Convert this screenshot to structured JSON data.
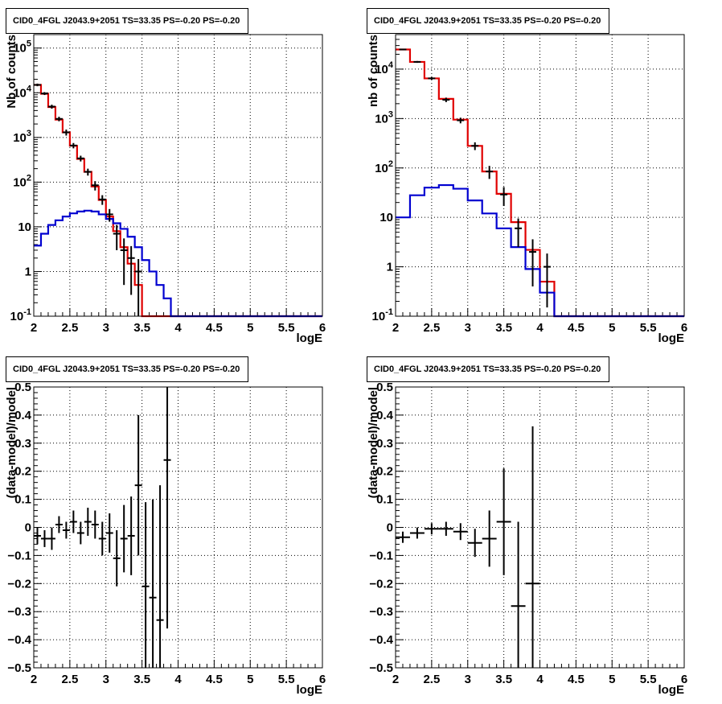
{
  "chart_data": [
    {
      "type": "line",
      "title": "CID0_4FGL J2043.9+2051 TS=33.35 PS=-0.20 PS=-0.20",
      "xlabel": "logE",
      "ylabel": "Nb of counts",
      "xlim": [
        2,
        6
      ],
      "ylim": [
        0.1,
        200000
      ],
      "yscale": "log",
      "grid": true,
      "x_ticks": [
        "2",
        "2.5",
        "3",
        "3.5",
        "4",
        "4.5",
        "5",
        "5.5",
        "6"
      ],
      "y_ticks": [
        "10⁻¹",
        "1",
        "10",
        "10²",
        "10³",
        "10⁴",
        "10⁵"
      ],
      "bin_edges": [
        2.0,
        2.1,
        2.2,
        2.3,
        2.4,
        2.5,
        2.6,
        2.7,
        2.8,
        2.9,
        3.0,
        3.1,
        3.2,
        3.3,
        3.4,
        3.5,
        3.6,
        3.7,
        3.8,
        3.9,
        4.0,
        4.1,
        4.2,
        4.3,
        4.4,
        4.5,
        4.6,
        4.7,
        4.8,
        4.9,
        5.0,
        5.1,
        5.2,
        5.3,
        5.4,
        5.5,
        5.6,
        5.7,
        5.8,
        5.9,
        6.0
      ],
      "series": [
        {
          "color": "#e00000",
          "style": "step",
          "values": [
            15000,
            9500,
            4800,
            2500,
            1300,
            650,
            330,
            170,
            80,
            40,
            17,
            8,
            3.5,
            1.5,
            0.5,
            0.1,
            0.1,
            0.1,
            0.1,
            0.1,
            0.1,
            0.1,
            0.1,
            0.1,
            0.1,
            0.1,
            0.1,
            0.1,
            0.1,
            0.1,
            0.1,
            0.1,
            0.1,
            0.1,
            0.1,
            0.1,
            0.1,
            0.1,
            0.1,
            0.1
          ]
        },
        {
          "color": "#0000d0",
          "style": "step",
          "values": [
            3.8,
            7,
            11,
            14,
            17,
            20,
            22,
            23,
            22,
            19,
            15,
            12,
            9,
            6,
            3.5,
            1.8,
            1,
            0.5,
            0.25,
            0.1,
            0.1,
            0.1,
            0.1,
            0.1,
            0.1,
            0.1,
            0.1,
            0.1,
            0.1,
            0.1,
            0.1,
            0.1,
            0.1,
            0.1,
            0.1,
            0.1,
            0.1,
            0.1,
            0.1,
            0.1
          ]
        },
        {
          "color": "#000000",
          "style": "errorbar",
          "points": [
            [
              2.05,
              15000,
              1000
            ],
            [
              2.15,
              9600,
              700
            ],
            [
              2.25,
              4900,
              500
            ],
            [
              2.35,
              2600,
              300
            ],
            [
              2.45,
              1300,
              200
            ],
            [
              2.55,
              660,
              90
            ],
            [
              2.65,
              340,
              50
            ],
            [
              2.75,
              170,
              30
            ],
            [
              2.85,
              85,
              20
            ],
            [
              2.95,
              41,
              10
            ],
            [
              3.05,
              19,
              6
            ],
            [
              3.15,
              7,
              4
            ],
            [
              3.25,
              3,
              2.5
            ],
            [
              3.35,
              2,
              1.7
            ],
            [
              3.45,
              1,
              0.9
            ]
          ]
        }
      ]
    },
    {
      "type": "line",
      "title": "CID0_4FGL J2043.9+2051 TS=33.35 PS=-0.20 PS=-0.20",
      "xlabel": "logE",
      "ylabel": "nb of counts",
      "xlim": [
        2,
        6
      ],
      "ylim": [
        0.1,
        50000
      ],
      "yscale": "log",
      "grid": true,
      "x_ticks": [
        "2",
        "2.5",
        "3",
        "3.5",
        "4",
        "4.5",
        "5",
        "5.5",
        "6"
      ],
      "y_ticks": [
        "10⁻¹",
        "1",
        "10",
        "10²",
        "10³",
        "10⁴"
      ],
      "bin_edges": [
        2.0,
        2.2,
        2.4,
        2.6,
        2.8,
        3.0,
        3.2,
        3.4,
        3.6,
        3.8,
        4.0,
        4.2,
        4.4,
        4.6,
        4.8,
        5.0,
        5.2,
        5.4,
        5.6,
        5.8,
        6.0
      ],
      "series": [
        {
          "color": "#e00000",
          "style": "step",
          "values": [
            25000,
            14000,
            6500,
            2500,
            950,
            280,
            85,
            30,
            8,
            2.2,
            0.5,
            0.1,
            0.1,
            0.1,
            0.1,
            0.1,
            0.1,
            0.1,
            0.1,
            0.1
          ]
        },
        {
          "color": "#0000d0",
          "style": "step",
          "values": [
            10,
            28,
            40,
            45,
            38,
            22,
            12,
            6,
            2.5,
            0.9,
            0.3,
            0.1,
            0.1,
            0.1,
            0.1,
            0.1,
            0.1,
            0.1,
            0.1,
            0.1
          ]
        },
        {
          "color": "#000000",
          "style": "errorbar",
          "points": [
            [
              2.1,
              25000,
              800
            ],
            [
              2.3,
              14000,
              600
            ],
            [
              2.5,
              6500,
              400
            ],
            [
              2.7,
              2400,
              250
            ],
            [
              2.9,
              920,
              120
            ],
            [
              3.1,
              280,
              50
            ],
            [
              3.3,
              85,
              25
            ],
            [
              3.5,
              29,
              12
            ],
            [
              3.7,
              6,
              3.5
            ],
            [
              3.9,
              2,
              1.6
            ],
            [
              4.1,
              1,
              0.85
            ]
          ]
        }
      ]
    },
    {
      "type": "scatter",
      "title": "CID0_4FGL J2043.9+2051 TS=33.35 PS=-0.20 PS=-0.20",
      "xlabel": "logE",
      "ylabel": "(data-model)/model",
      "xlim": [
        2,
        6
      ],
      "ylim": [
        -0.5,
        0.5
      ],
      "grid": true,
      "x_ticks": [
        "2",
        "2.5",
        "3",
        "3.5",
        "4",
        "4.5",
        "5",
        "5.5",
        "6"
      ],
      "y_ticks": [
        "−0.5",
        "−0.4",
        "−0.3",
        "−0.2",
        "−0.1",
        "0",
        "0.1",
        "0.2",
        "0.3",
        "0.4",
        "0.5"
      ],
      "xerr": 0.05,
      "series": [
        {
          "color": "#000000",
          "style": "errorbar",
          "points": [
            [
              2.05,
              -0.03,
              0.03
            ],
            [
              2.15,
              -0.04,
              0.03
            ],
            [
              2.25,
              -0.04,
              0.04
            ],
            [
              2.35,
              0.01,
              0.03
            ],
            [
              2.45,
              -0.01,
              0.03
            ],
            [
              2.55,
              0.02,
              0.04
            ],
            [
              2.65,
              -0.02,
              0.04
            ],
            [
              2.75,
              0.02,
              0.05
            ],
            [
              2.85,
              0.01,
              0.05
            ],
            [
              2.95,
              -0.04,
              0.06
            ],
            [
              3.05,
              -0.02,
              0.07
            ],
            [
              3.15,
              -0.11,
              0.1
            ],
            [
              3.25,
              -0.04,
              0.12
            ],
            [
              3.35,
              -0.03,
              0.14
            ],
            [
              3.45,
              0.15,
              0.25
            ],
            [
              3.55,
              -0.21,
              0.3
            ],
            [
              3.65,
              -0.25,
              0.35
            ],
            [
              3.75,
              -0.33,
              0.48
            ],
            [
              3.85,
              0.24,
              0.6
            ]
          ]
        }
      ]
    },
    {
      "type": "scatter",
      "title": "CID0_4FGL J2043.9+2051 TS=33.35 PS=-0.20 PS=-0.20",
      "xlabel": "logE",
      "ylabel": "(data-model)/model",
      "xlim": [
        2,
        6
      ],
      "ylim": [
        -0.5,
        0.5
      ],
      "grid": true,
      "x_ticks": [
        "2",
        "2.5",
        "3",
        "3.5",
        "4",
        "4.5",
        "5",
        "5.5",
        "6"
      ],
      "y_ticks": [
        "−0.5",
        "−0.4",
        "−0.3",
        "−0.2",
        "−0.1",
        "0",
        "0.1",
        "0.2",
        "0.3",
        "0.4",
        "0.5"
      ],
      "xerr": 0.1,
      "series": [
        {
          "color": "#000000",
          "style": "errorbar",
          "points": [
            [
              2.1,
              -0.035,
              0.02
            ],
            [
              2.3,
              -0.02,
              0.02
            ],
            [
              2.5,
              -0.005,
              0.02
            ],
            [
              2.7,
              -0.005,
              0.025
            ],
            [
              2.9,
              -0.015,
              0.03
            ],
            [
              3.1,
              -0.055,
              0.05
            ],
            [
              3.3,
              -0.04,
              0.1
            ],
            [
              3.5,
              0.02,
              0.19
            ],
            [
              3.7,
              -0.28,
              0.3
            ],
            [
              3.9,
              -0.2,
              0.56
            ]
          ]
        }
      ]
    }
  ]
}
